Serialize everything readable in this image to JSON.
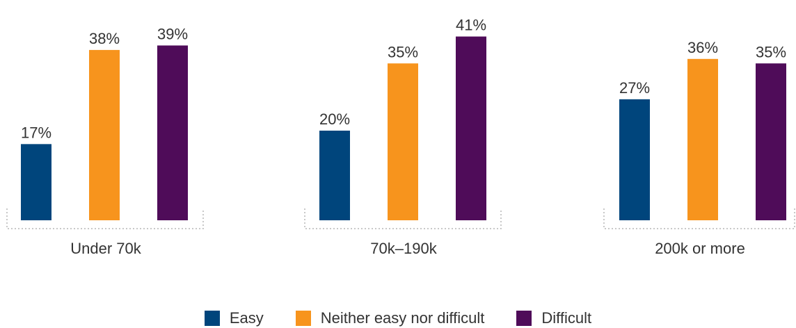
{
  "chart_data": {
    "type": "bar",
    "categories": [
      "Under 70k",
      "70k–190k",
      "200k or more"
    ],
    "series": [
      {
        "name": "Easy",
        "color": "#00457c",
        "values": [
          17,
          20,
          27
        ],
        "labels": [
          "17%",
          "20%",
          "27%"
        ]
      },
      {
        "name": "Neither easy nor difficult",
        "color": "#f7941d",
        "values": [
          38,
          35,
          36
        ],
        "labels": [
          "38%",
          "35%",
          "36%"
        ]
      },
      {
        "name": "Difficult",
        "color": "#4f0c59",
        "values": [
          39,
          41,
          35
        ],
        "labels": [
          "39%",
          "41%",
          "35%"
        ]
      }
    ],
    "ylim": [
      0,
      48
    ],
    "unit": "%",
    "grid": false,
    "legend_position": "bottom"
  }
}
